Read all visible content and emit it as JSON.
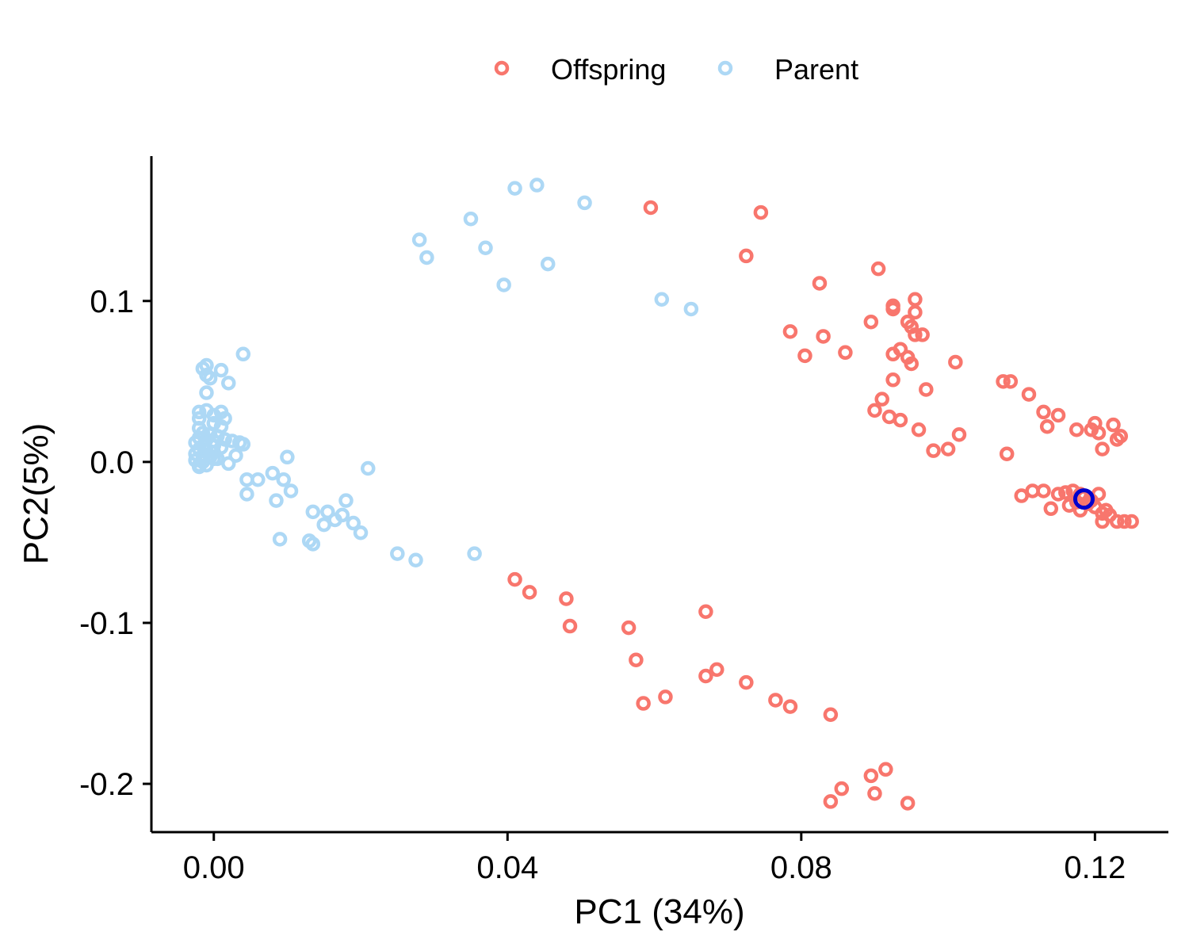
{
  "chart_data": {
    "type": "scatter",
    "xlabel": "PC1 (34%)",
    "ylabel": "PC2(5%)",
    "xlim": [
      -0.0085,
      0.13
    ],
    "ylim": [
      -0.23,
      0.19
    ],
    "xticks": [
      {
        "value": 0.0,
        "label": "0.00"
      },
      {
        "value": 0.04,
        "label": "0.04"
      },
      {
        "value": 0.08,
        "label": "0.08"
      },
      {
        "value": 0.12,
        "label": "0.12"
      }
    ],
    "yticks": [
      {
        "value": 0.1,
        "label": "0.1"
      },
      {
        "value": 0.0,
        "label": "0.0"
      },
      {
        "value": -0.1,
        "label": "-0.1"
      },
      {
        "value": -0.2,
        "label": "-0.2"
      }
    ],
    "grid": false,
    "legend_position": "top",
    "series": [
      {
        "name": "Offspring",
        "color": "#F8766D",
        "points": [
          [
            0.0595,
            0.158
          ],
          [
            0.0745,
            0.155
          ],
          [
            0.0725,
            0.128
          ],
          [
            0.0905,
            0.12
          ],
          [
            0.0825,
            0.111
          ],
          [
            0.0955,
            0.101
          ],
          [
            0.0925,
            0.097
          ],
          [
            0.0925,
            0.095
          ],
          [
            0.0955,
            0.093
          ],
          [
            0.0895,
            0.087
          ],
          [
            0.0945,
            0.087
          ],
          [
            0.095,
            0.084
          ],
          [
            0.0965,
            0.079
          ],
          [
            0.0955,
            0.079
          ],
          [
            0.0785,
            0.081
          ],
          [
            0.083,
            0.078
          ],
          [
            0.086,
            0.068
          ],
          [
            0.0805,
            0.066
          ],
          [
            0.0935,
            0.07
          ],
          [
            0.0925,
            0.067
          ],
          [
            0.0945,
            0.065
          ],
          [
            0.095,
            0.061
          ],
          [
            0.101,
            0.062
          ],
          [
            0.0925,
            0.051
          ],
          [
            0.097,
            0.045
          ],
          [
            0.1075,
            0.05
          ],
          [
            0.1085,
            0.05
          ],
          [
            0.111,
            0.042
          ],
          [
            0.091,
            0.039
          ],
          [
            0.09,
            0.032
          ],
          [
            0.092,
            0.028
          ],
          [
            0.0935,
            0.026
          ],
          [
            0.096,
            0.02
          ],
          [
            0.1015,
            0.017
          ],
          [
            0.098,
            0.007
          ],
          [
            0.1,
            0.008
          ],
          [
            0.108,
            0.005
          ],
          [
            0.113,
            0.031
          ],
          [
            0.115,
            0.029
          ],
          [
            0.1135,
            0.022
          ],
          [
            0.1175,
            0.02
          ],
          [
            0.1195,
            0.02
          ],
          [
            0.12,
            0.024
          ],
          [
            0.1205,
            0.018
          ],
          [
            0.1225,
            0.023
          ],
          [
            0.123,
            0.014
          ],
          [
            0.1235,
            0.016
          ],
          [
            0.121,
            0.008
          ],
          [
            0.11,
            -0.021
          ],
          [
            0.1115,
            -0.018
          ],
          [
            0.113,
            -0.018
          ],
          [
            0.114,
            -0.029
          ],
          [
            0.115,
            -0.02
          ],
          [
            0.116,
            -0.019
          ],
          [
            0.1165,
            -0.027
          ],
          [
            0.117,
            -0.018
          ],
          [
            0.1175,
            -0.025
          ],
          [
            0.118,
            -0.02
          ],
          [
            0.118,
            -0.03
          ],
          [
            0.1185,
            -0.022
          ],
          [
            0.119,
            -0.026
          ],
          [
            0.1195,
            -0.024
          ],
          [
            0.12,
            -0.028
          ],
          [
            0.1205,
            -0.02
          ],
          [
            0.121,
            -0.032
          ],
          [
            0.121,
            -0.037
          ],
          [
            0.1215,
            -0.03
          ],
          [
            0.122,
            -0.033
          ],
          [
            0.123,
            -0.037
          ],
          [
            0.124,
            -0.037
          ],
          [
            0.125,
            -0.037
          ],
          [
            0.041,
            -0.073
          ],
          [
            0.043,
            -0.081
          ],
          [
            0.048,
            -0.085
          ],
          [
            0.0485,
            -0.102
          ],
          [
            0.0565,
            -0.103
          ],
          [
            0.0575,
            -0.123
          ],
          [
            0.0585,
            -0.15
          ],
          [
            0.0615,
            -0.146
          ],
          [
            0.067,
            -0.093
          ],
          [
            0.067,
            -0.133
          ],
          [
            0.0685,
            -0.129
          ],
          [
            0.0725,
            -0.137
          ],
          [
            0.0765,
            -0.148
          ],
          [
            0.0785,
            -0.152
          ],
          [
            0.084,
            -0.157
          ],
          [
            0.0895,
            -0.195
          ],
          [
            0.0915,
            -0.191
          ],
          [
            0.09,
            -0.206
          ],
          [
            0.0855,
            -0.203
          ],
          [
            0.084,
            -0.211
          ],
          [
            0.0945,
            -0.212
          ]
        ]
      },
      {
        "name": "Parent",
        "color": "#ADD8F5",
        "points": [
          [
            0.044,
            0.172
          ],
          [
            0.041,
            0.17
          ],
          [
            0.0505,
            0.161
          ],
          [
            0.035,
            0.151
          ],
          [
            0.028,
            0.138
          ],
          [
            0.029,
            0.127
          ],
          [
            0.037,
            0.133
          ],
          [
            0.0455,
            0.123
          ],
          [
            0.0395,
            0.11
          ],
          [
            0.061,
            0.101
          ],
          [
            0.065,
            0.095
          ],
          [
            0.004,
            0.067
          ],
          [
            -0.001,
            0.06
          ],
          [
            -0.0015,
            0.058
          ],
          [
            0.001,
            0.057
          ],
          [
            -0.001,
            0.054
          ],
          [
            -0.0005,
            0.052
          ],
          [
            0.002,
            0.049
          ],
          [
            -0.001,
            0.043
          ],
          [
            -0.002,
            0.031
          ],
          [
            -0.001,
            0.032
          ],
          [
            0.0,
            0.029
          ],
          [
            0.001,
            0.031
          ],
          [
            0.0015,
            0.027
          ],
          [
            -0.002,
            0.027
          ],
          [
            0.0,
            0.024
          ],
          [
            0.001,
            0.022
          ],
          [
            -0.002,
            0.021
          ],
          [
            -0.0015,
            0.018
          ],
          [
            -0.0005,
            0.017
          ],
          [
            0.0005,
            0.016
          ],
          [
            -0.002,
            0.015
          ],
          [
            -0.001,
            0.014
          ],
          [
            0.0,
            0.013
          ],
          [
            0.0015,
            0.014
          ],
          [
            0.0025,
            0.013
          ],
          [
            0.0035,
            0.012
          ],
          [
            0.004,
            0.011
          ],
          [
            -0.0025,
            0.012
          ],
          [
            -0.0015,
            0.01
          ],
          [
            0.0,
            0.01
          ],
          [
            0.001,
            0.009
          ],
          [
            -0.002,
            0.008
          ],
          [
            -0.001,
            0.007
          ],
          [
            0.0,
            0.006
          ],
          [
            -0.0025,
            0.005
          ],
          [
            -0.0015,
            0.004
          ],
          [
            -0.0005,
            0.003
          ],
          [
            0.0,
            0.002
          ],
          [
            -0.0025,
            0.001
          ],
          [
            -0.0015,
            0.0
          ],
          [
            0.0005,
            0.002
          ],
          [
            -0.002,
            -0.002
          ],
          [
            -0.001,
            -0.002
          ],
          [
            -0.002,
            -0.003
          ],
          [
            0.003,
            0.004
          ],
          [
            0.002,
            -0.001
          ],
          [
            0.01,
            0.003
          ],
          [
            0.021,
            -0.004
          ],
          [
            0.0045,
            -0.011
          ],
          [
            0.006,
            -0.011
          ],
          [
            0.008,
            -0.007
          ],
          [
            0.0095,
            -0.011
          ],
          [
            0.0105,
            -0.018
          ],
          [
            0.0045,
            -0.02
          ],
          [
            0.0085,
            -0.024
          ],
          [
            0.0135,
            -0.031
          ],
          [
            0.0155,
            -0.031
          ],
          [
            0.0175,
            -0.033
          ],
          [
            0.0165,
            -0.036
          ],
          [
            0.015,
            -0.039
          ],
          [
            0.018,
            -0.024
          ],
          [
            0.019,
            -0.038
          ],
          [
            0.02,
            -0.044
          ],
          [
            0.009,
            -0.048
          ],
          [
            0.013,
            -0.049
          ],
          [
            0.0135,
            -0.051
          ],
          [
            0.025,
            -0.057
          ],
          [
            0.0275,
            -0.061
          ],
          [
            0.0355,
            -0.057
          ]
        ]
      }
    ],
    "highlight": {
      "x": 0.1185,
      "y": -0.023,
      "color": "#0000CD"
    }
  }
}
